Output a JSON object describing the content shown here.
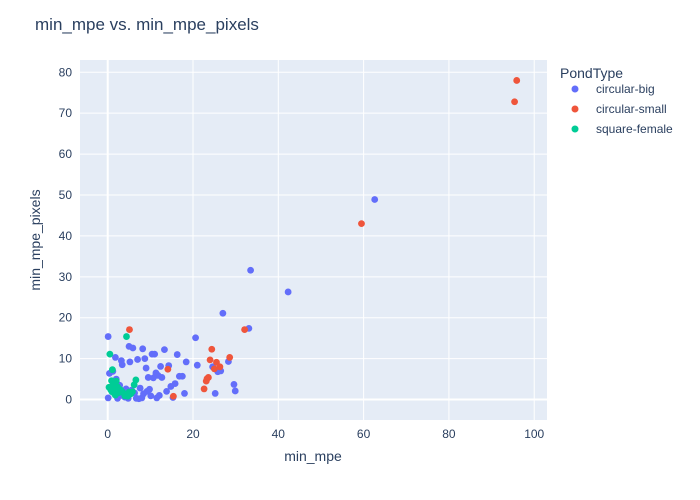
{
  "chart_data": {
    "type": "scatter",
    "title": "min_mpe vs. min_mpe_pixels",
    "xlabel": "min_mpe",
    "ylabel": "min_mpe_pixels",
    "xlim": [
      -6.5,
      103
    ],
    "ylim": [
      -5,
      83
    ],
    "xticks": [
      0,
      20,
      40,
      60,
      80,
      100
    ],
    "yticks": [
      0,
      10,
      20,
      30,
      40,
      50,
      60,
      70,
      80
    ],
    "grid": true,
    "legend_title": "PondType",
    "legend_position": "right",
    "series": [
      {
        "name": "circular-big",
        "color": "#636efa",
        "points": [
          [
            0.1,
            15.4
          ],
          [
            0.1,
            0.4
          ],
          [
            0.4,
            6.4
          ],
          [
            1.2,
            6.9
          ],
          [
            1.8,
            10.3
          ],
          [
            2.0,
            5.0
          ],
          [
            2.3,
            0.3
          ],
          [
            2.5,
            1.1
          ],
          [
            2.8,
            3.5
          ],
          [
            3.2,
            9.5
          ],
          [
            3.4,
            8.5
          ],
          [
            3.6,
            0.9
          ],
          [
            4.0,
            0.6
          ],
          [
            4.3,
            2.6
          ],
          [
            4.8,
            0.3
          ],
          [
            5.0,
            13.0
          ],
          [
            5.2,
            9.2
          ],
          [
            5.6,
            2.3
          ],
          [
            5.9,
            12.6
          ],
          [
            6.3,
            1.6
          ],
          [
            6.7,
            0.3
          ],
          [
            7.0,
            9.8
          ],
          [
            7.3,
            0.2
          ],
          [
            7.6,
            2.8
          ],
          [
            8.0,
            0.4
          ],
          [
            8.2,
            12.4
          ],
          [
            8.4,
            1.4
          ],
          [
            8.7,
            10.0
          ],
          [
            9.0,
            7.7
          ],
          [
            9.2,
            2.0
          ],
          [
            9.5,
            5.4
          ],
          [
            9.8,
            2.5
          ],
          [
            10.1,
            0.9
          ],
          [
            10.4,
            11.1
          ],
          [
            10.7,
            5.3
          ],
          [
            11.0,
            11.1
          ],
          [
            11.3,
            6.5
          ],
          [
            11.5,
            0.4
          ],
          [
            11.8,
            5.9
          ],
          [
            12.1,
            1.0
          ],
          [
            12.4,
            8.1
          ],
          [
            12.7,
            5.4
          ],
          [
            13.3,
            12.2
          ],
          [
            13.8,
            2.0
          ],
          [
            14.3,
            8.3
          ],
          [
            14.8,
            3.2
          ],
          [
            15.3,
            0.5
          ],
          [
            15.8,
            3.9
          ],
          [
            16.3,
            11.0
          ],
          [
            16.8,
            5.7
          ],
          [
            17.5,
            5.7
          ],
          [
            18.0,
            1.5
          ],
          [
            18.4,
            9.2
          ],
          [
            20.6,
            15.1
          ],
          [
            21.0,
            8.4
          ],
          [
            24.6,
            8.0
          ],
          [
            25.2,
            1.5
          ],
          [
            25.8,
            6.8
          ],
          [
            26.5,
            7.0
          ],
          [
            27.0,
            21.1
          ],
          [
            28.3,
            9.3
          ],
          [
            29.6,
            3.7
          ],
          [
            29.9,
            2.1
          ],
          [
            33.1,
            17.4
          ],
          [
            33.5,
            31.6
          ],
          [
            42.3,
            26.3
          ],
          [
            62.6,
            48.9
          ]
        ]
      },
      {
        "name": "circular-small",
        "color": "#ef553b",
        "points": [
          [
            5.1,
            17.1
          ],
          [
            14.1,
            7.4
          ],
          [
            15.4,
            0.8
          ],
          [
            22.6,
            2.6
          ],
          [
            23.1,
            4.5
          ],
          [
            23.3,
            5.1
          ],
          [
            23.6,
            5.4
          ],
          [
            24.0,
            9.7
          ],
          [
            24.4,
            12.3
          ],
          [
            25.0,
            7.5
          ],
          [
            25.5,
            9.1
          ],
          [
            26.3,
            8.0
          ],
          [
            28.6,
            10.3
          ],
          [
            32.1,
            17.1
          ],
          [
            59.5,
            43.0
          ],
          [
            95.4,
            72.8
          ],
          [
            95.9,
            78.0
          ]
        ]
      },
      {
        "name": "square-female",
        "color": "#00cc96",
        "points": [
          [
            0.3,
            3.0
          ],
          [
            0.5,
            11.1
          ],
          [
            0.7,
            2.4
          ],
          [
            0.9,
            4.6
          ],
          [
            1.0,
            1.9
          ],
          [
            1.1,
            7.3
          ],
          [
            1.3,
            3.6
          ],
          [
            1.4,
            2.7
          ],
          [
            1.6,
            1.4
          ],
          [
            1.8,
            1.1
          ],
          [
            2.0,
            4.5
          ],
          [
            2.3,
            3.1
          ],
          [
            2.6,
            1.7
          ],
          [
            3.0,
            2.4
          ],
          [
            3.5,
            1.8
          ],
          [
            4.0,
            0.9
          ],
          [
            4.4,
            15.4
          ],
          [
            4.7,
            0.8
          ],
          [
            5.0,
            1.8
          ],
          [
            5.4,
            1.4
          ],
          [
            5.8,
            1.9
          ],
          [
            6.2,
            3.6
          ],
          [
            6.6,
            4.8
          ]
        ]
      }
    ]
  }
}
